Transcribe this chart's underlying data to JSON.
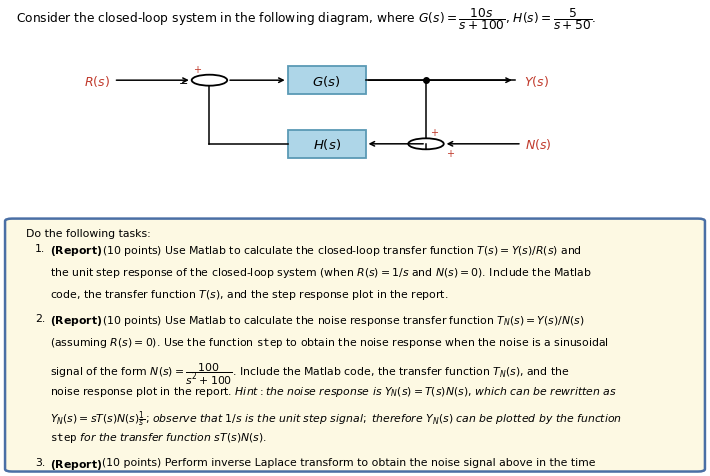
{
  "bg_color": "#ffffff",
  "box_bg": "#aed6e8",
  "box_border": "#5a9ab5",
  "bottom_bg": "#fdf9e3",
  "bottom_border": "#4a6fa5",
  "label_color": "#c0392b",
  "diagram": {
    "sx1": 0.295,
    "sy1": 0.63,
    "gx": 0.46,
    "gy": 0.63,
    "ox": 0.6,
    "oy": 0.63,
    "sx2": 0.6,
    "sy2": 0.34,
    "hx": 0.46,
    "hy": 0.34,
    "cr": 0.025
  }
}
